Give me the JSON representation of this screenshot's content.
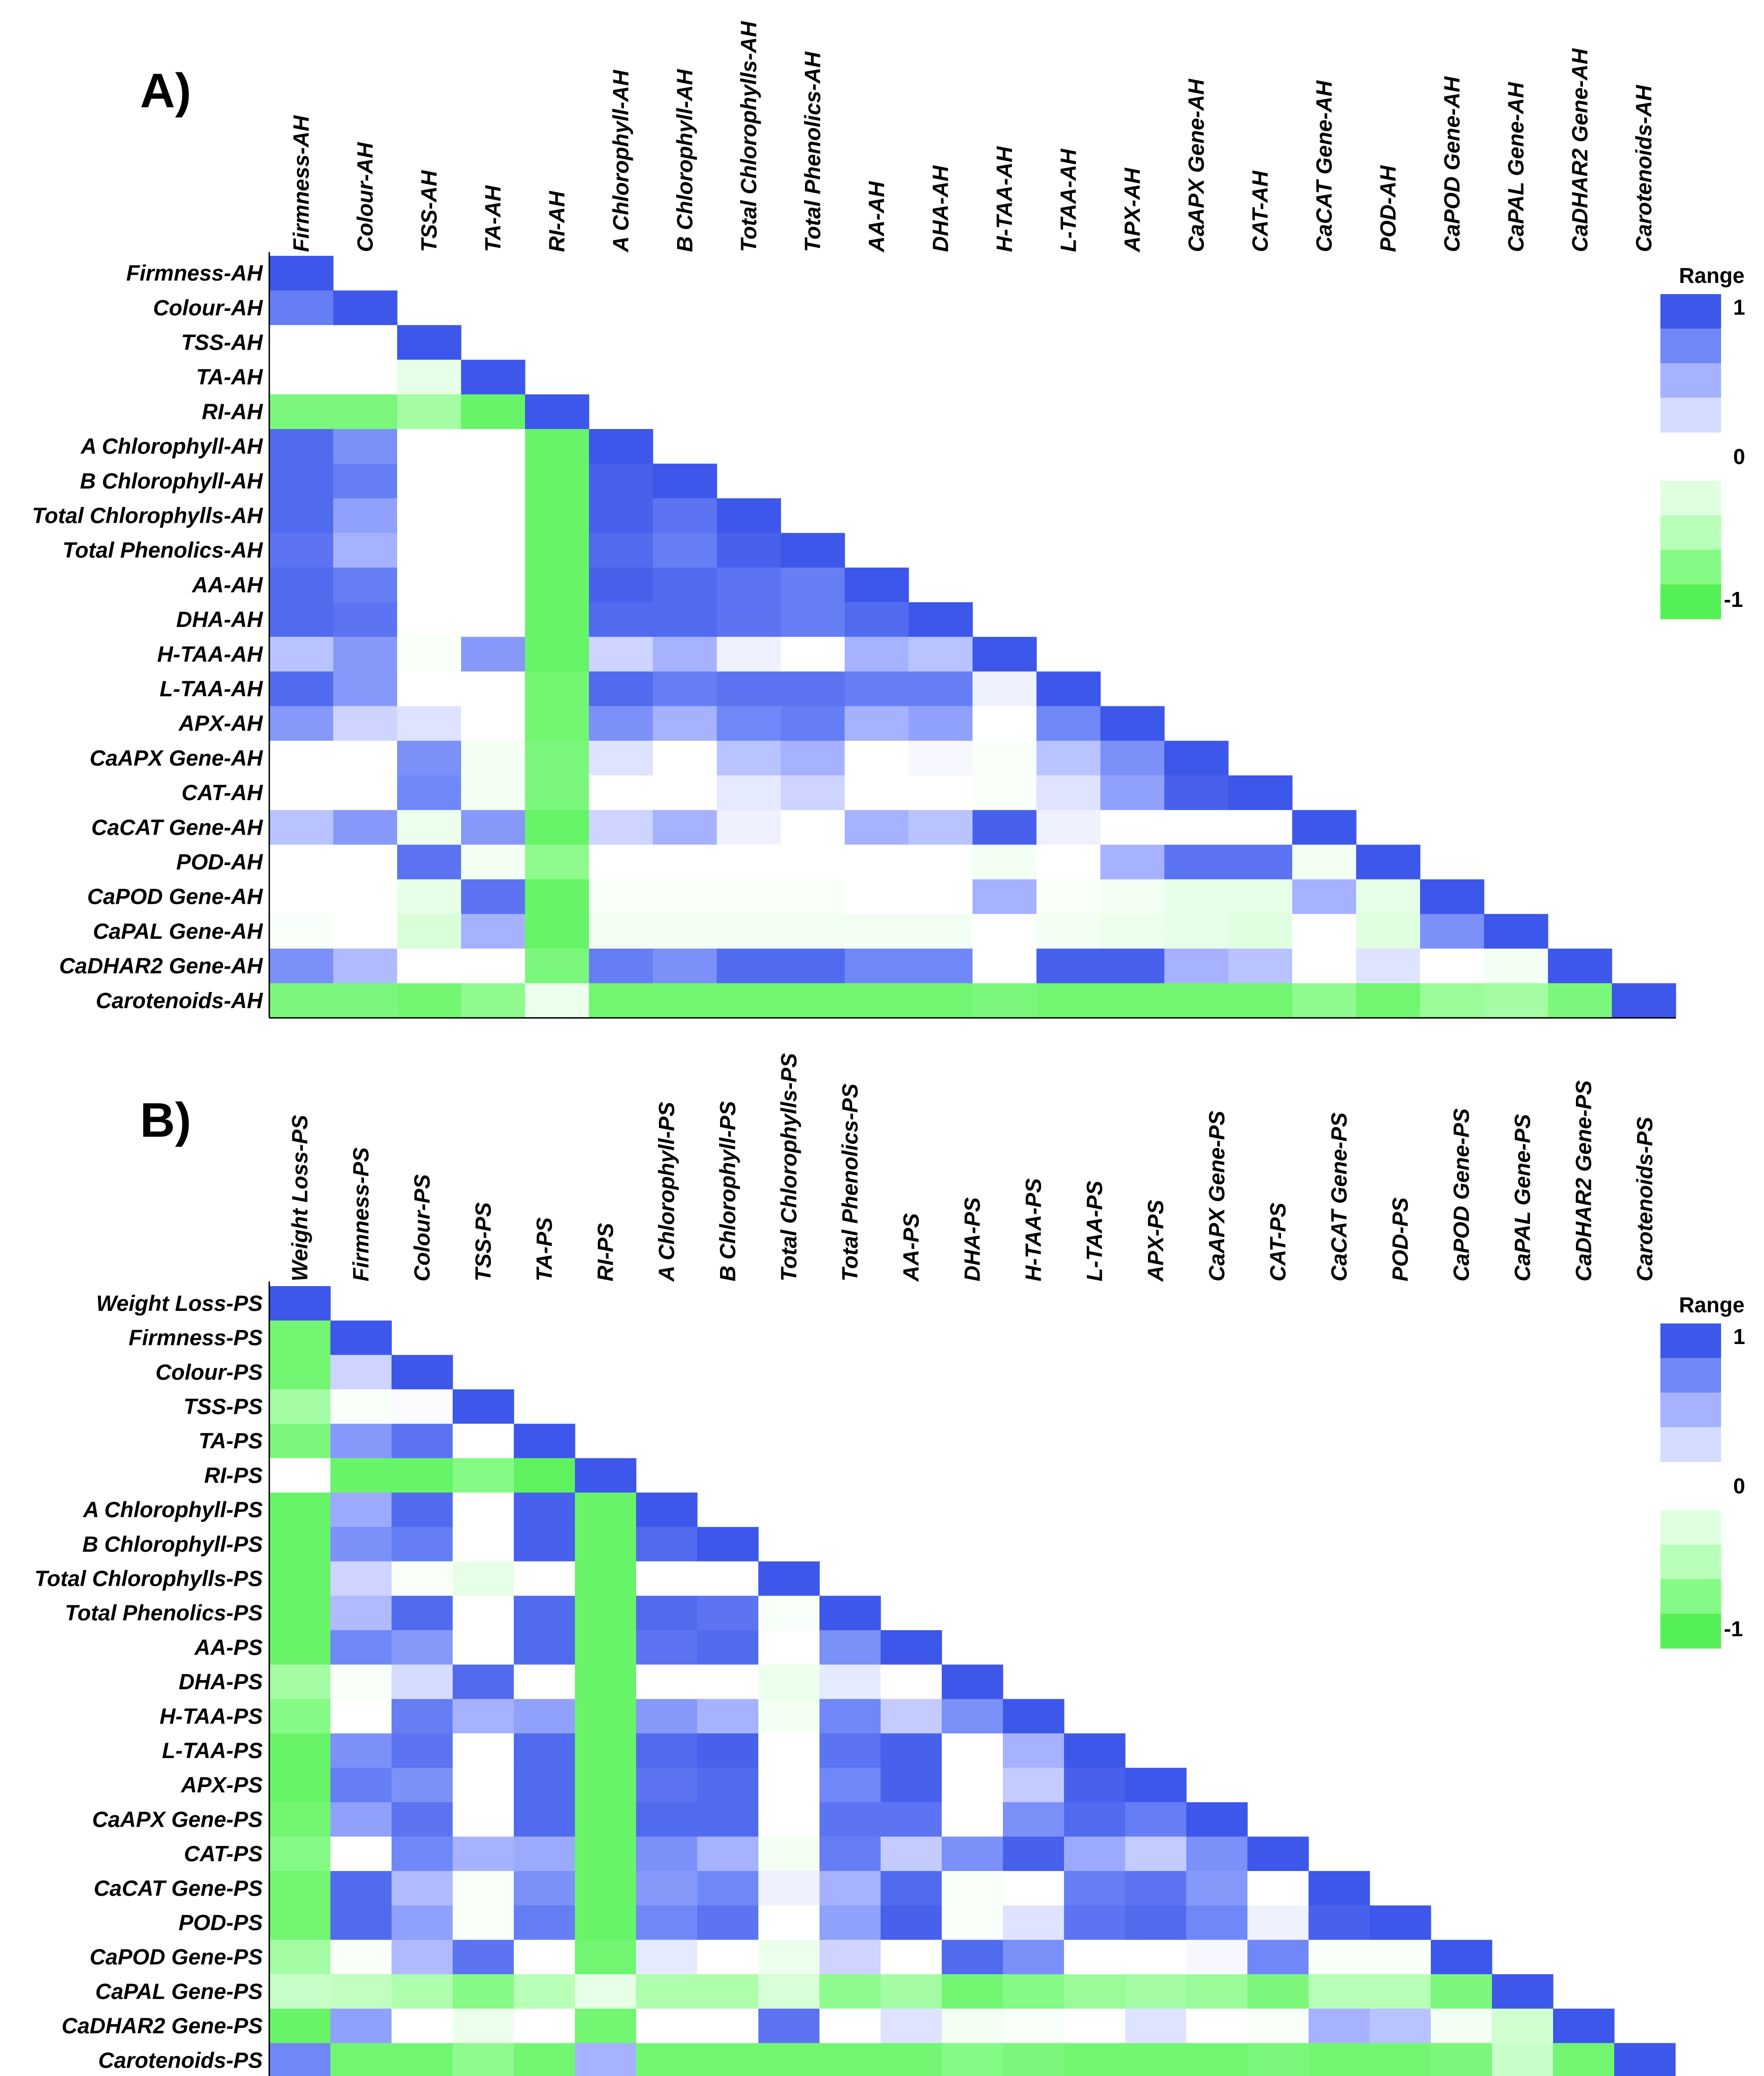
{
  "colors": {
    "pos_scale": [
      "#ffffff",
      "#d6dcff",
      "#a6b2ff",
      "#7088f7",
      "#3d57ea"
    ],
    "neg_scale": [
      "#ffffff",
      "#e0ffe0",
      "#b8ffb8",
      "#85fa85",
      "#55f055"
    ]
  },
  "legend": {
    "title": "Range",
    "max_label": "1",
    "mid_label": "0",
    "min_label": "-1"
  },
  "chart_data": [
    {
      "type": "heatmap",
      "panel_label": "A)",
      "labels": [
        "Firmness-AH",
        "Colour-AH",
        "TSS-AH",
        "TA-AH",
        "RI-AH",
        "A Chlorophyll-AH",
        "B Chlorophyll-AH",
        "Total Chlorophylls-AH",
        "Total Phenolics-AH",
        "AA-AH",
        "DHA-AH",
        "H-TAA-AH",
        "L-TAA-AH",
        "APX-AH",
        "CaAPX Gene-AH",
        "CAT-AH",
        "CaCAT Gene-AH",
        "POD-AH",
        "CaPOD Gene-AH",
        "CaPAL Gene-AH",
        "CaDHAR2 Gene-AH",
        "Carotenoids-AH"
      ],
      "value_range": [
        -1,
        1
      ],
      "matrix": [
        [
          1
        ],
        [
          0.8,
          1
        ],
        [
          0,
          0,
          1
        ],
        [
          0,
          0,
          -0.2,
          1
        ],
        [
          -0.8,
          -0.8,
          -0.6,
          -0.9,
          1
        ],
        [
          0.9,
          0.7,
          0,
          0,
          -0.9,
          1
        ],
        [
          0.9,
          0.8,
          0,
          0,
          -0.9,
          0.95,
          1
        ],
        [
          0.9,
          0.6,
          0,
          0,
          -0.9,
          0.95,
          0.85,
          1
        ],
        [
          0.85,
          0.5,
          0,
          0,
          -0.9,
          0.9,
          0.8,
          0.95,
          1
        ],
        [
          0.9,
          0.8,
          0,
          0,
          -0.9,
          0.95,
          0.9,
          0.85,
          0.8,
          1
        ],
        [
          0.9,
          0.85,
          0,
          0,
          -0.9,
          0.9,
          0.9,
          0.85,
          0.8,
          0.9,
          1
        ],
        [
          0.4,
          0.65,
          -0.05,
          0.65,
          -0.9,
          0.3,
          0.5,
          0.1,
          0,
          0.5,
          0.4,
          1
        ],
        [
          0.9,
          0.65,
          0,
          0,
          -0.85,
          0.9,
          0.8,
          0.85,
          0.85,
          0.8,
          0.8,
          0.1,
          1
        ],
        [
          0.65,
          0.3,
          0.2,
          0,
          -0.85,
          0.7,
          0.5,
          0.75,
          0.8,
          0.5,
          0.6,
          0,
          0.75,
          1
        ],
        [
          0,
          0,
          0.7,
          -0.1,
          -0.8,
          0.2,
          0,
          0.4,
          0.5,
          0,
          0.05,
          -0.05,
          0.4,
          0.7,
          1
        ],
        [
          0,
          0,
          0.75,
          -0.1,
          -0.8,
          0,
          0,
          0.15,
          0.3,
          0,
          0,
          -0.05,
          0.2,
          0.6,
          0.95,
          1
        ],
        [
          0.4,
          0.65,
          -0.15,
          0.65,
          -0.9,
          0.3,
          0.5,
          0.1,
          0,
          0.5,
          0.4,
          0.95,
          0.1,
          0,
          0,
          0,
          1
        ],
        [
          0,
          0,
          0.85,
          -0.1,
          -0.7,
          0,
          0,
          0,
          0,
          0,
          0,
          -0.1,
          0,
          0.5,
          0.85,
          0.85,
          -0.1,
          1
        ],
        [
          0,
          0,
          -0.2,
          0.85,
          -0.9,
          -0.05,
          -0.05,
          -0.05,
          -0.05,
          0,
          0,
          0.5,
          -0.05,
          -0.1,
          -0.2,
          -0.2,
          0.5,
          -0.2,
          1
        ],
        [
          -0.05,
          0,
          -0.3,
          0.5,
          -0.9,
          -0.1,
          -0.1,
          -0.1,
          -0.1,
          -0.1,
          -0.1,
          0,
          -0.1,
          -0.15,
          -0.2,
          -0.25,
          0,
          -0.25,
          0.7,
          1
        ],
        [
          0.7,
          0.45,
          0,
          0,
          -0.8,
          0.8,
          0.7,
          0.9,
          0.9,
          0.75,
          0.75,
          0,
          0.95,
          0.95,
          0.5,
          0.4,
          0,
          0.2,
          0,
          -0.1,
          1
        ],
        [
          -0.8,
          -0.8,
          -0.85,
          -0.7,
          -0.15,
          -0.85,
          -0.85,
          -0.85,
          -0.85,
          -0.85,
          -0.85,
          -0.8,
          -0.85,
          -0.85,
          -0.85,
          -0.85,
          -0.7,
          -0.85,
          -0.65,
          -0.6,
          -0.8,
          1
        ]
      ]
    },
    {
      "type": "heatmap",
      "panel_label": "B)",
      "labels": [
        "Weight Loss-PS",
        "Firmness-PS",
        "Colour-PS",
        "TSS-PS",
        "TA-PS",
        "RI-PS",
        "A Chlorophyll-PS",
        "B Chlorophyll-PS",
        "Total Chlorophylls-PS",
        "Total Phenolics-PS",
        "AA-PS",
        "DHA-PS",
        "H-TAA-PS",
        "L-TAA-PS",
        "APX-PS",
        "CaAPX Gene-PS",
        "CAT-PS",
        "CaCAT Gene-PS",
        "POD-PS",
        "CaPOD Gene-PS",
        "CaPAL Gene-PS",
        "CaDHAR2 Gene-PS",
        "Carotenoids-PS"
      ],
      "value_range": [
        -1,
        1
      ],
      "matrix": [
        [
          1
        ],
        [
          -0.85,
          1
        ],
        [
          -0.85,
          0.3,
          1
        ],
        [
          -0.6,
          -0.05,
          0.02,
          1
        ],
        [
          -0.8,
          0.65,
          0.85,
          0,
          1
        ],
        [
          0,
          -0.9,
          -0.9,
          -0.75,
          -0.95,
          1
        ],
        [
          -0.9,
          0.55,
          0.9,
          0,
          0.95,
          -0.9,
          1
        ],
        [
          -0.9,
          0.7,
          0.8,
          0,
          0.95,
          -0.9,
          0.9,
          1
        ],
        [
          -0.9,
          0.3,
          -0.05,
          -0.2,
          0,
          -0.9,
          0,
          0,
          1
        ],
        [
          -0.9,
          0.45,
          0.9,
          0,
          0.9,
          -0.9,
          0.9,
          0.85,
          -0.05,
          1
        ],
        [
          -0.9,
          0.75,
          0.65,
          0,
          0.9,
          -0.9,
          0.85,
          0.9,
          0,
          0.7,
          1
        ],
        [
          -0.6,
          -0.05,
          0.25,
          0.9,
          0,
          -0.9,
          0,
          0,
          -0.15,
          0.15,
          0,
          1
        ],
        [
          -0.75,
          0,
          0.8,
          0.5,
          0.6,
          -0.9,
          0.65,
          0.5,
          -0.1,
          0.75,
          0.35,
          0.7,
          1
        ],
        [
          -0.9,
          0.7,
          0.85,
          0,
          0.9,
          -0.9,
          0.9,
          0.95,
          0,
          0.85,
          0.95,
          0,
          0.5,
          1
        ],
        [
          -0.9,
          0.8,
          0.7,
          0,
          0.9,
          -0.9,
          0.85,
          0.9,
          0,
          0.75,
          0.95,
          0,
          0.35,
          0.95,
          1
        ],
        [
          -0.85,
          0.6,
          0.85,
          0,
          0.9,
          -0.9,
          0.9,
          0.9,
          0,
          0.85,
          0.85,
          0,
          0.7,
          0.9,
          0.8,
          1
        ],
        [
          -0.75,
          0,
          0.75,
          0.5,
          0.55,
          -0.9,
          0.7,
          0.5,
          -0.1,
          0.8,
          0.35,
          0.7,
          0.95,
          0.55,
          0.35,
          0.7,
          1
        ],
        [
          -0.85,
          0.9,
          0.45,
          -0.05,
          0.7,
          -0.9,
          0.65,
          0.75,
          0.1,
          0.5,
          0.9,
          -0.05,
          0,
          0.8,
          0.85,
          0.65,
          0,
          1
        ],
        [
          -0.85,
          0.9,
          0.6,
          -0.05,
          0.8,
          -0.9,
          0.75,
          0.85,
          0,
          0.6,
          0.95,
          -0.05,
          0.2,
          0.85,
          0.9,
          0.75,
          0.1,
          0.95,
          1
        ],
        [
          -0.6,
          -0.05,
          0.45,
          0.85,
          0,
          -0.85,
          0.15,
          0,
          -0.15,
          0.3,
          0,
          0.9,
          0.7,
          0,
          0,
          0.05,
          0.75,
          -0.05,
          -0.05,
          1
        ],
        [
          -0.4,
          -0.45,
          -0.55,
          -0.75,
          -0.5,
          -0.2,
          -0.55,
          -0.55,
          -0.3,
          -0.7,
          -0.6,
          -0.85,
          -0.75,
          -0.65,
          -0.6,
          -0.65,
          -0.8,
          -0.5,
          -0.5,
          -0.8,
          1
        ],
        [
          -0.9,
          0.6,
          0,
          -0.15,
          0,
          -0.85,
          0,
          0,
          0.85,
          0,
          0.2,
          -0.1,
          -0.05,
          0,
          0.2,
          0,
          -0.05,
          0.5,
          0.4,
          -0.1,
          -0.35,
          1
        ],
        [
          0.75,
          -0.85,
          -0.85,
          -0.7,
          -0.85,
          0.5,
          -0.85,
          -0.85,
          -0.85,
          -0.85,
          -0.85,
          -0.75,
          -0.8,
          -0.85,
          -0.85,
          -0.85,
          -0.8,
          -0.85,
          -0.85,
          -0.8,
          -0.4,
          -0.85,
          1
        ]
      ]
    }
  ]
}
